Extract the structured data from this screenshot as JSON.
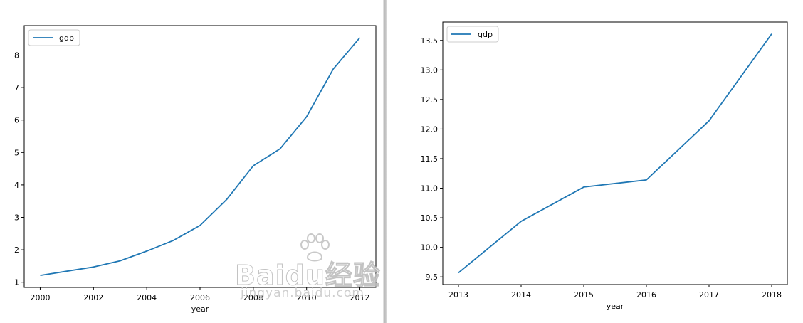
{
  "chart_data": [
    {
      "type": "line",
      "x": [
        2000,
        2001,
        2002,
        2003,
        2004,
        2005,
        2006,
        2007,
        2008,
        2009,
        2010,
        2011,
        2012
      ],
      "series": [
        {
          "name": "gdp",
          "color": "#1f77b4",
          "values": [
            1.21,
            1.34,
            1.47,
            1.66,
            1.96,
            2.29,
            2.75,
            3.55,
            4.59,
            5.11,
            6.1,
            7.57,
            8.54
          ]
        }
      ],
      "xticks": [
        2000,
        2002,
        2004,
        2006,
        2008,
        2010,
        2012
      ],
      "xtick_labels": [
        "2000",
        "2002",
        "2004",
        "2006",
        "2008",
        "2010",
        "2012"
      ],
      "yticks": [
        1,
        2,
        3,
        4,
        5,
        6,
        7,
        8
      ],
      "ytick_labels": [
        "1",
        "2",
        "3",
        "4",
        "5",
        "6",
        "7",
        "8"
      ],
      "xlim": [
        1999.4,
        2012.6
      ],
      "ylim": [
        0.84,
        8.91
      ],
      "title": "",
      "xlabel": "year",
      "ylabel": "",
      "legend": "top-left",
      "grid": false
    },
    {
      "type": "line",
      "x": [
        2013,
        2014,
        2015,
        2016,
        2017,
        2018
      ],
      "series": [
        {
          "name": "gdp",
          "color": "#1f77b4",
          "values": [
            9.57,
            10.44,
            11.02,
            11.14,
            12.14,
            13.61
          ]
        }
      ],
      "xticks": [
        2013,
        2014,
        2015,
        2016,
        2017,
        2018
      ],
      "xtick_labels": [
        "2013",
        "2014",
        "2015",
        "2016",
        "2017",
        "2018"
      ],
      "yticks": [
        9.5,
        10.0,
        10.5,
        11.0,
        11.5,
        12.0,
        12.5,
        13.0,
        13.5
      ],
      "ytick_labels": [
        "9.5",
        "10.0",
        "10.5",
        "11.0",
        "11.5",
        "12.0",
        "12.5",
        "13.0",
        "13.5"
      ],
      "xlim": [
        2012.75,
        2018.25
      ],
      "ylim": [
        9.37,
        13.81
      ],
      "title": "",
      "xlabel": "year",
      "ylabel": "",
      "legend": "top-left",
      "grid": false
    }
  ],
  "watermark": {
    "logo": "Baidu经验",
    "sub": "jingyan.baidu.com"
  }
}
